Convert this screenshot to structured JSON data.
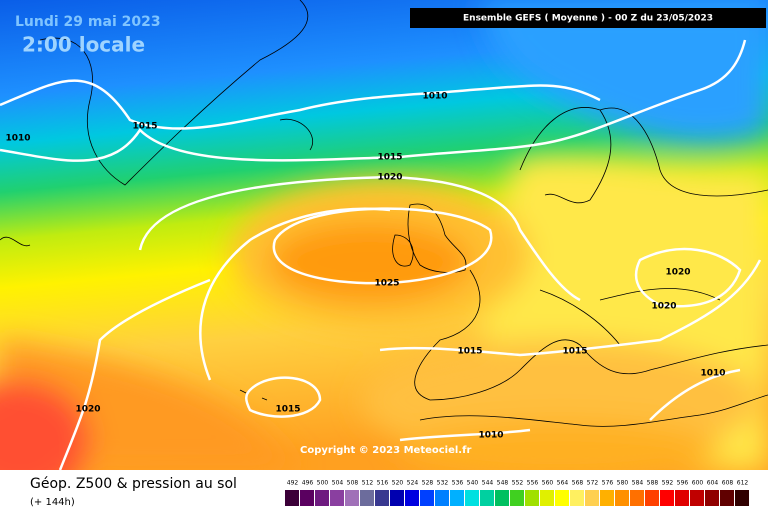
{
  "header": {
    "date": "Lundi 29 mai 2023",
    "time": "2:00 locale",
    "model": "Ensemble GEFS  ( Moyenne )  -  00 Z du 23/05/2023"
  },
  "isobar_labels": [
    1010,
    1015,
    1010,
    1015,
    1020,
    1025,
    1020,
    1020,
    1015,
    1015,
    1010,
    1020,
    1015,
    1010
  ],
  "copyright": "Copyright © 2023 Meteociel.fr",
  "footer": {
    "title": "Géop. Z500 & pression au sol",
    "subtitle": "(+ 144h)"
  },
  "legend": {
    "values": [
      492,
      496,
      500,
      504,
      508,
      512,
      516,
      520,
      524,
      528,
      532,
      536,
      540,
      544,
      548,
      552,
      556,
      560,
      564,
      568,
      572,
      576,
      580,
      584,
      588,
      592,
      596,
      600,
      604,
      608,
      612
    ],
    "colors": [
      "#3b0038",
      "#5a0060",
      "#6e1a80",
      "#8a3fa0",
      "#a070b8",
      "#6c6c9c",
      "#383890",
      "#0000b0",
      "#0000e0",
      "#0040ff",
      "#0080ff",
      "#00b0ff",
      "#00e0e0",
      "#00d0a0",
      "#00c060",
      "#40d020",
      "#a0e000",
      "#e0f000",
      "#ffff00",
      "#fff060",
      "#ffd050",
      "#ffb000",
      "#ff9000",
      "#ff7000",
      "#ff4000",
      "#ff0000",
      "#e00000",
      "#c00000",
      "#900000",
      "#600000",
      "#300000"
    ]
  }
}
